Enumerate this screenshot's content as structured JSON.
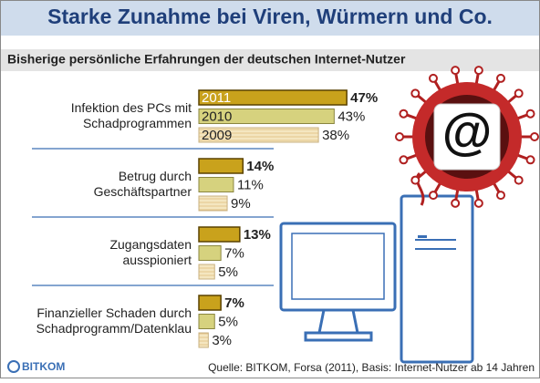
{
  "chart_data": {
    "type": "bar",
    "orientation": "horizontal",
    "title": "Starke Zunahme bei Viren, Würmern und Co.",
    "subtitle": "Bisherige persönliche Erfahrungen der deutschen Internet-Nutzer",
    "categories": [
      "Infektion des PCs mit\nSchadprogrammen",
      "Betrug durch\nGeschäftspartner",
      "Zugangsdaten\nausspioniert",
      "Finanzieller Schaden durch\nSchadprogramm/Datenklau"
    ],
    "series": [
      {
        "name": "2011",
        "color": "#c9a21c",
        "values": [
          47,
          14,
          13,
          7
        ],
        "value_labels": [
          "47%",
          "14%",
          "13%",
          "7%"
        ]
      },
      {
        "name": "2010",
        "color": "#d6d27e",
        "values": [
          43,
          11,
          7,
          5
        ],
        "value_labels": [
          "43%",
          "11%",
          "7%",
          "5%"
        ]
      },
      {
        "name": "2009",
        "color": "#eedcae",
        "values": [
          38,
          9,
          5,
          3
        ],
        "value_labels": [
          "38%",
          "9%",
          "5%",
          "3%"
        ]
      }
    ],
    "source": "Quelle: BITKOM, Forsa (2011), Basis: Internet-Nutzer ab 14 Jahren",
    "logo": "BITKOM",
    "illustration_label": "@"
  }
}
